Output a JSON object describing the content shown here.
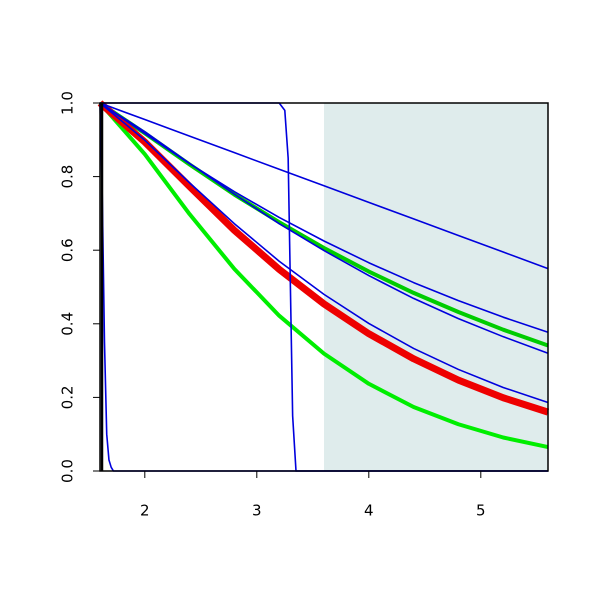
{
  "chart_data": {
    "type": "line",
    "xlim": [
      1.6,
      5.6
    ],
    "ylim": [
      0,
      1
    ],
    "xticks": [
      2,
      3,
      4,
      5
    ],
    "yticks": [
      {
        "value": 0,
        "label": "0.0"
      },
      {
        "value": 0.2,
        "label": "0.2"
      },
      {
        "value": 0.4,
        "label": "0.4"
      },
      {
        "value": 0.6,
        "label": "0.6"
      },
      {
        "value": 0.8,
        "label": "0.8"
      },
      {
        "value": 1,
        "label": "1.0"
      }
    ],
    "shaded_xlim": [
      3.6,
      5.6
    ],
    "shaded_color": "#dfecec",
    "x": [
      1.6,
      2.0,
      2.4,
      2.8,
      3.2,
      3.6,
      4.0,
      4.4,
      4.8,
      5.2,
      5.6
    ],
    "series": [
      {
        "color": "#00cc00",
        "width": 4,
        "values": [
          1,
          0.918,
          0.833,
          0.751,
          0.676,
          0.606,
          0.542,
          0.484,
          0.432,
          0.384,
          0.341
        ]
      },
      {
        "color": "#00ee00",
        "width": 4,
        "values": [
          1,
          0.861,
          0.698,
          0.549,
          0.422,
          0.319,
          0.237,
          0.174,
          0.127,
          0.091,
          0.065
        ]
      },
      {
        "color": "#ee0000",
        "width": 7,
        "values": [
          1,
          0.894,
          0.773,
          0.654,
          0.548,
          0.454,
          0.373,
          0.305,
          0.247,
          0.199,
          0.16
        ]
      },
      {
        "color": "#0000dd",
        "width": 1.6,
        "values": [
          1,
          0.955,
          0.91,
          0.865,
          0.82,
          0.775,
          0.73,
          0.685,
          0.64,
          0.595,
          0.55
        ]
      },
      {
        "color": "#0000dd",
        "width": 1.6,
        "values": [
          1,
          0.917,
          0.835,
          0.759,
          0.689,
          0.625,
          0.566,
          0.512,
          0.463,
          0.418,
          0.377
        ]
      },
      {
        "color": "#0000dd",
        "width": 1.6,
        "values": [
          1,
          0.922,
          0.836,
          0.752,
          0.672,
          0.599,
          0.531,
          0.469,
          0.414,
          0.365,
          0.32
        ]
      },
      {
        "color": "#0000dd",
        "width": 1.6,
        "values": [
          1,
          0.899,
          0.783,
          0.672,
          0.57,
          0.48,
          0.401,
          0.333,
          0.276,
          0.227,
          0.186
        ]
      },
      {
        "color": "#0000dd",
        "width": 1.6,
        "x": [
          1.6,
          1.62,
          1.64,
          1.66,
          1.68,
          1.7,
          1.72,
          5.6
        ],
        "values": [
          1,
          0.75,
          0.35,
          0.1,
          0.03,
          0.01,
          0,
          0
        ]
      },
      {
        "color": "#0000dd",
        "width": 1.6,
        "x": [
          1.6,
          3.2,
          3.25,
          3.28,
          3.3,
          3.32,
          3.35,
          5.6
        ],
        "values": [
          1,
          1,
          0.98,
          0.85,
          0.5,
          0.15,
          0,
          0
        ]
      }
    ]
  }
}
